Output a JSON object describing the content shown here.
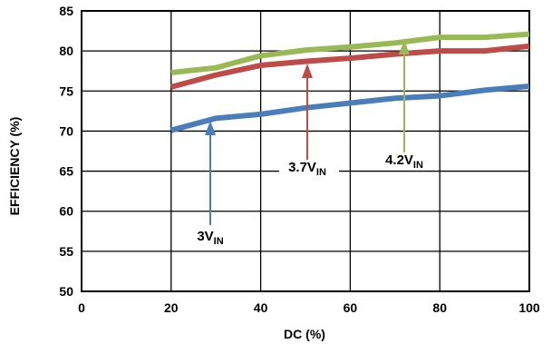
{
  "chart_data": {
    "type": "line",
    "xlabel": "DC (%)",
    "ylabel": "EFFICIENCY (%)",
    "xlim": [
      0,
      100
    ],
    "ylim": [
      50,
      85
    ],
    "x_ticks": [
      "0",
      "20",
      "40",
      "60",
      "80",
      "100"
    ],
    "y_ticks": [
      "50",
      "55",
      "60",
      "65",
      "70",
      "75",
      "80",
      "85"
    ],
    "grid": true,
    "legend": "none",
    "series": [
      {
        "name": "3V_IN",
        "color": "#4a7ebb",
        "x": [
          20,
          30,
          40,
          50,
          60,
          70,
          80,
          90,
          100
        ],
        "values": [
          70.1,
          71.6,
          72.1,
          72.9,
          73.5,
          74.1,
          74.4,
          75.1,
          75.6
        ]
      },
      {
        "name": "3.7V_IN",
        "color": "#be4b48",
        "x": [
          20,
          30,
          40,
          50,
          60,
          70,
          80,
          90,
          100
        ],
        "values": [
          75.5,
          77.0,
          78.2,
          78.7,
          79.1,
          79.6,
          80.0,
          80.0,
          80.6
        ]
      },
      {
        "name": "4.2V_IN",
        "color": "#98b954",
        "x": [
          20,
          30,
          40,
          50,
          60,
          70,
          80,
          90,
          100
        ],
        "values": [
          77.3,
          77.9,
          79.4,
          80.1,
          80.5,
          81.0,
          81.7,
          81.7,
          82.1
        ]
      }
    ],
    "annotations": [
      {
        "main": "3V",
        "sub": "IN",
        "color": "#4a7ebb"
      },
      {
        "main": "3.7V",
        "sub": "IN",
        "color": "#be4b48"
      },
      {
        "main": "4.2V",
        "sub": "IN",
        "color": "#98b954"
      }
    ]
  }
}
